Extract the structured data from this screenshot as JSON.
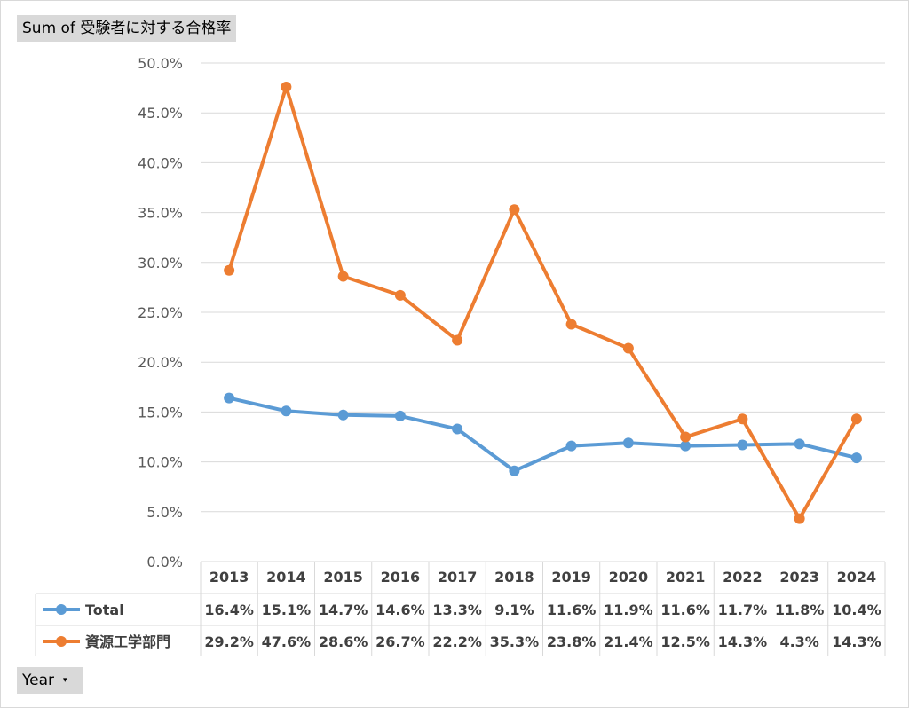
{
  "value_field_label": "Sum of 受験者に対する合格率",
  "row_field_label": "Year",
  "row_field_arrow": "▾",
  "chart_data": {
    "type": "line",
    "categories": [
      "2013",
      "2014",
      "2015",
      "2016",
      "2017",
      "2018",
      "2019",
      "2020",
      "2021",
      "2022",
      "2023",
      "2024"
    ],
    "series": [
      {
        "name": "Total",
        "color": "#5b9bd5",
        "values": [
          16.4,
          15.1,
          14.7,
          14.6,
          13.3,
          9.1,
          11.6,
          11.9,
          11.6,
          11.7,
          11.8,
          10.4
        ],
        "labels": [
          "16.4%",
          "15.1%",
          "14.7%",
          "14.6%",
          "13.3%",
          "9.1%",
          "11.6%",
          "11.9%",
          "11.6%",
          "11.7%",
          "11.8%",
          "10.4%"
        ]
      },
      {
        "name": "資源工学部門",
        "color": "#ed7d31",
        "values": [
          29.2,
          47.6,
          28.6,
          26.7,
          22.2,
          35.3,
          23.8,
          21.4,
          12.5,
          14.3,
          4.3,
          14.3
        ],
        "labels": [
          "29.2%",
          "47.6%",
          "28.6%",
          "26.7%",
          "22.2%",
          "35.3%",
          "23.8%",
          "21.4%",
          "12.5%",
          "14.3%",
          "4.3%",
          "14.3%"
        ]
      }
    ],
    "y_ticks": [
      "0.0%",
      "5.0%",
      "10.0%",
      "15.0%",
      "20.0%",
      "25.0%",
      "30.0%",
      "35.0%",
      "40.0%",
      "45.0%",
      "50.0%"
    ],
    "ylim": [
      0,
      50
    ],
    "grid": true,
    "legend": "data-table"
  }
}
